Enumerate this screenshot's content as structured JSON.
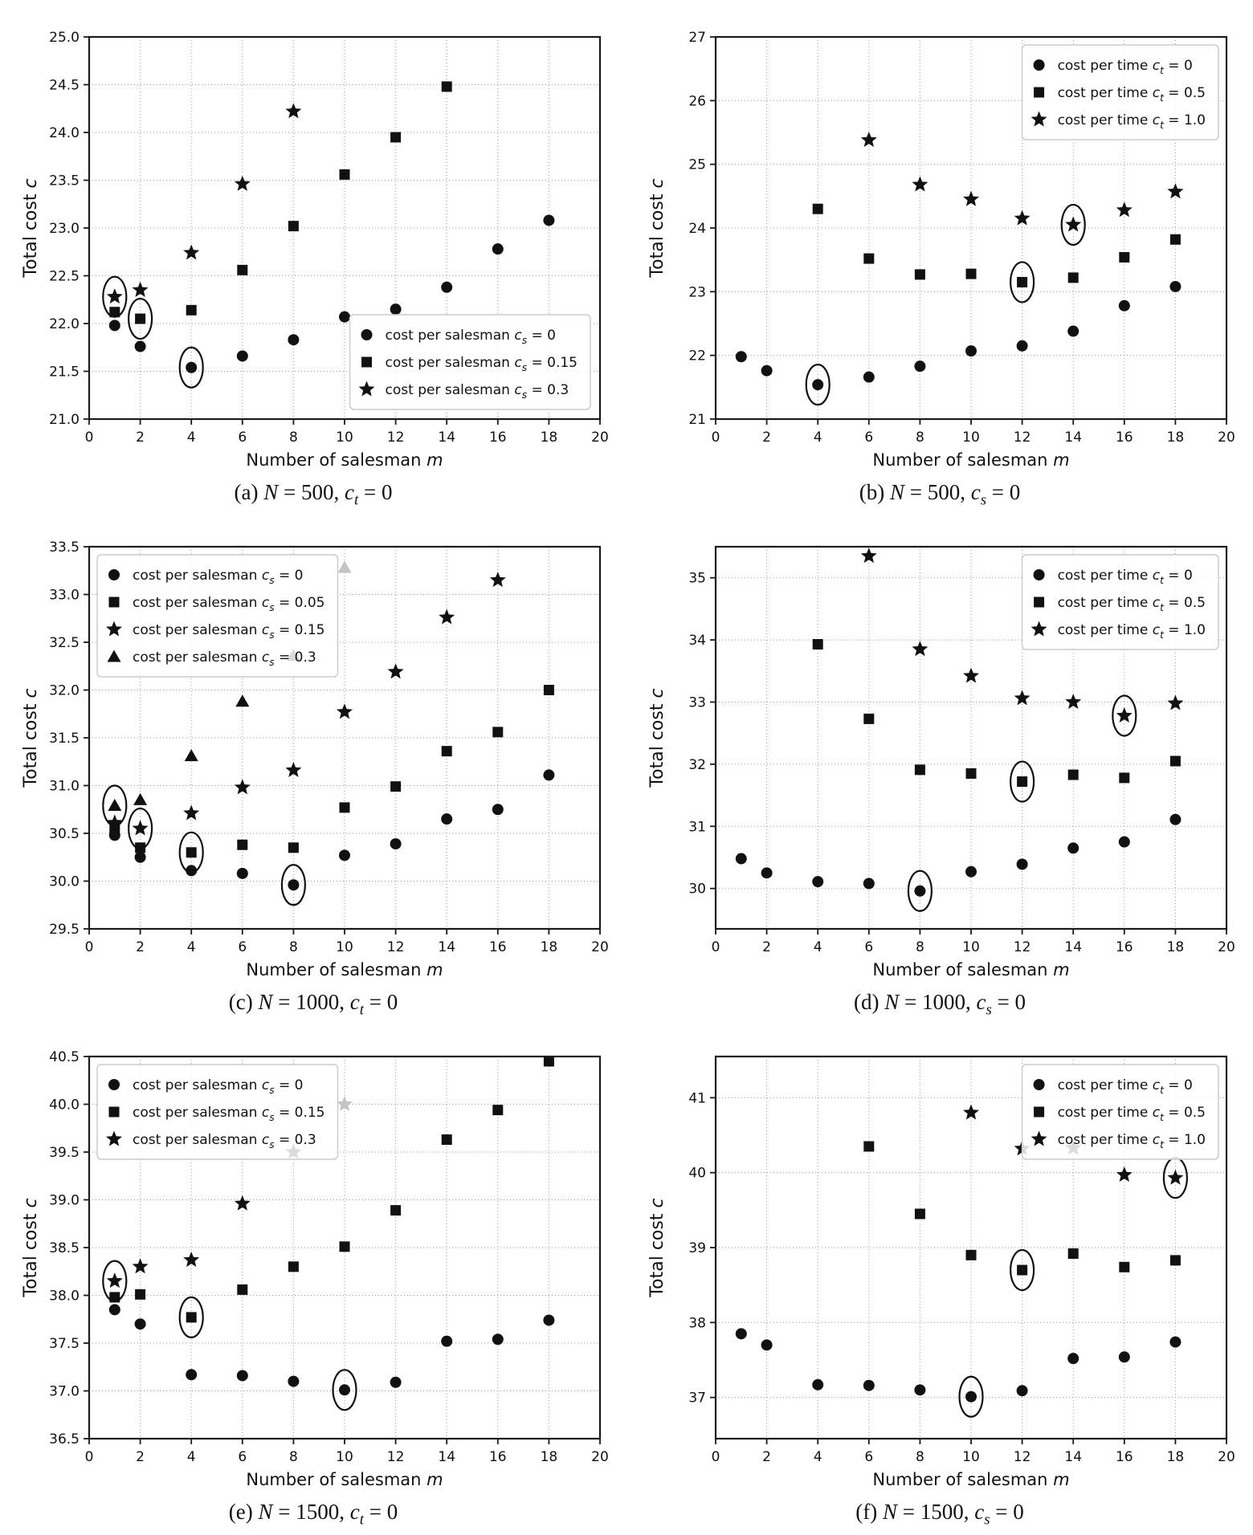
{
  "style": {
    "marker_color": "#111111",
    "faded_marker_color": "#c4c4c4",
    "grid_color": "#9b9b9b",
    "axis_color": "#1a1a1a",
    "legend_border": "#cccccc",
    "background": "#ffffff"
  },
  "chart_data": [
    {
      "id": "a",
      "type": "scatter",
      "caption": "(a) N = 500, c_t = 0",
      "xlabel": "Number of salesman m",
      "ylabel": "Total cost c",
      "xlim": [
        0,
        20
      ],
      "ylim": [
        21.0,
        25.0
      ],
      "xticks": [
        0,
        2,
        4,
        6,
        8,
        10,
        12,
        14,
        16,
        18,
        20
      ],
      "xtick_labels": [
        "0",
        "2",
        "4",
        "6",
        "8",
        "10",
        "12",
        "14",
        "16",
        "18",
        "20"
      ],
      "yticks": [
        21.0,
        21.5,
        22.0,
        22.5,
        23.0,
        23.5,
        24.0,
        24.5,
        25.0
      ],
      "ytick_labels": [
        "21.0",
        "21.5",
        "22.0",
        "22.5",
        "23.0",
        "23.5",
        "24.0",
        "24.5",
        "25.0"
      ],
      "legend": {
        "position": "lower-right",
        "items": [
          {
            "marker": "circle",
            "label": "cost per salesman c_s = 0"
          },
          {
            "marker": "square",
            "label": "cost per salesman c_s = 0.15"
          },
          {
            "marker": "star",
            "label": "cost per salesman c_s = 0.3"
          }
        ]
      },
      "series": [
        {
          "name": "cost per salesman c_s = 0",
          "marker": "circle",
          "x": [
            1,
            2,
            4,
            6,
            8,
            10,
            12,
            14,
            16,
            18
          ],
          "y": [
            21.98,
            21.76,
            21.54,
            21.66,
            21.83,
            22.07,
            22.15,
            22.38,
            22.78,
            23.08
          ]
        },
        {
          "name": "cost per salesman c_s = 0.15",
          "marker": "square",
          "x": [
            1,
            2,
            4,
            6,
            8,
            10,
            12,
            14
          ],
          "y": [
            22.12,
            22.05,
            22.14,
            22.56,
            23.02,
            23.56,
            23.95,
            24.48
          ]
        },
        {
          "name": "cost per salesman c_s = 0.3",
          "marker": "star",
          "x": [
            1,
            2,
            4,
            6,
            8
          ],
          "y": [
            22.28,
            22.35,
            22.74,
            23.46,
            24.22
          ]
        }
      ],
      "circled": [
        {
          "x": 4,
          "y": 21.54
        },
        {
          "x": 2,
          "y": 22.05
        },
        {
          "x": 1,
          "y": 22.28
        }
      ]
    },
    {
      "id": "b",
      "type": "scatter",
      "caption": "(b) N = 500, c_s = 0",
      "xlabel": "Number of salesman m",
      "ylabel": "Total cost c",
      "xlim": [
        0,
        20
      ],
      "ylim": [
        21,
        27
      ],
      "xticks": [
        0,
        2,
        4,
        6,
        8,
        10,
        12,
        14,
        16,
        18,
        20
      ],
      "xtick_labels": [
        "0",
        "2",
        "4",
        "6",
        "8",
        "10",
        "12",
        "14",
        "16",
        "18",
        "20"
      ],
      "yticks": [
        21,
        22,
        23,
        24,
        25,
        26,
        27
      ],
      "ytick_labels": [
        "21",
        "22",
        "23",
        "24",
        "25",
        "26",
        "27"
      ],
      "legend": {
        "position": "upper-right",
        "items": [
          {
            "marker": "circle",
            "label": "cost per time c_t = 0"
          },
          {
            "marker": "square",
            "label": "cost per time c_t = 0.5"
          },
          {
            "marker": "star",
            "label": "cost per time c_t = 1.0"
          }
        ]
      },
      "series": [
        {
          "name": "cost per time c_t = 0",
          "marker": "circle",
          "x": [
            1,
            2,
            4,
            6,
            8,
            10,
            12,
            14,
            16,
            18
          ],
          "y": [
            21.98,
            21.76,
            21.54,
            21.66,
            21.83,
            22.07,
            22.15,
            22.38,
            22.78,
            23.08
          ]
        },
        {
          "name": "cost per time c_t = 0.5",
          "marker": "square",
          "x": [
            4,
            6,
            8,
            10,
            12,
            14,
            16,
            18
          ],
          "y": [
            24.3,
            23.52,
            23.27,
            23.28,
            23.15,
            23.22,
            23.54,
            23.82
          ]
        },
        {
          "name": "cost per time c_t = 1.0",
          "marker": "star",
          "x": [
            6,
            8,
            10,
            12,
            14,
            16,
            18
          ],
          "y": [
            25.38,
            24.68,
            24.45,
            24.15,
            24.05,
            24.28,
            24.57
          ]
        }
      ],
      "circled": [
        {
          "x": 4,
          "y": 21.54
        },
        {
          "x": 12,
          "y": 23.15
        },
        {
          "x": 14,
          "y": 24.05
        }
      ]
    },
    {
      "id": "c",
      "type": "scatter",
      "caption": "(c) N = 1000, c_t = 0",
      "xlabel": "Number of salesman m",
      "ylabel": "Total cost c",
      "xlim": [
        0,
        20
      ],
      "ylim": [
        29.5,
        33.5
      ],
      "xticks": [
        0,
        2,
        4,
        6,
        8,
        10,
        12,
        14,
        16,
        18,
        20
      ],
      "xtick_labels": [
        "0",
        "2",
        "4",
        "6",
        "8",
        "10",
        "12",
        "14",
        "16",
        "18",
        "20"
      ],
      "yticks": [
        29.5,
        30.0,
        30.5,
        31.0,
        31.5,
        32.0,
        32.5,
        33.0,
        33.5
      ],
      "ytick_labels": [
        "29.5",
        "30.0",
        "30.5",
        "31.0",
        "31.5",
        "32.0",
        "32.5",
        "33.0",
        "33.5"
      ],
      "legend": {
        "position": "upper-left",
        "items": [
          {
            "marker": "circle",
            "label": "cost per salesman c_s = 0"
          },
          {
            "marker": "square",
            "label": "cost per salesman c_s = 0.05"
          },
          {
            "marker": "star",
            "label": "cost per salesman c_s = 0.15"
          },
          {
            "marker": "triangle",
            "label": "cost per salesman c_s = 0.3"
          }
        ]
      },
      "series": [
        {
          "name": "cost per salesman c_s = 0",
          "marker": "circle",
          "x": [
            1,
            2,
            4,
            6,
            8,
            10,
            12,
            14,
            16,
            18
          ],
          "y": [
            30.48,
            30.25,
            30.11,
            30.08,
            29.96,
            30.27,
            30.39,
            30.65,
            30.75,
            31.11
          ]
        },
        {
          "name": "cost per salesman c_s = 0.05",
          "marker": "square",
          "x": [
            1,
            2,
            4,
            6,
            8,
            10,
            12,
            14,
            16,
            18
          ],
          "y": [
            30.54,
            30.35,
            30.3,
            30.38,
            30.35,
            30.77,
            30.99,
            31.36,
            31.56,
            32.0
          ]
        },
        {
          "name": "cost per salesman c_s = 0.15",
          "marker": "star",
          "x": [
            1,
            2,
            4,
            6,
            8,
            10,
            12,
            14,
            16
          ],
          "y": [
            30.61,
            30.55,
            30.71,
            30.98,
            31.16,
            31.77,
            32.19,
            32.76,
            33.15
          ]
        },
        {
          "name": "cost per salesman c_s = 0.3",
          "marker": "triangle",
          "x": [
            1,
            2,
            4,
            6,
            8,
            10
          ],
          "y": [
            30.79,
            30.85,
            31.31,
            31.88,
            32.36,
            33.28
          ],
          "faded_x": [
            10
          ]
        }
      ],
      "circled": [
        {
          "x": 8,
          "y": 29.96
        },
        {
          "x": 4,
          "y": 30.3
        },
        {
          "x": 2,
          "y": 30.55
        },
        {
          "x": 1,
          "y": 30.79
        }
      ]
    },
    {
      "id": "d",
      "type": "scatter",
      "caption": "(d) N = 1000, c_s = 0",
      "xlabel": "Number of salesman m",
      "ylabel": "Total cost c",
      "xlim": [
        0,
        20
      ],
      "ylim": [
        29.35,
        35.5
      ],
      "xticks": [
        0,
        2,
        4,
        6,
        8,
        10,
        12,
        14,
        16,
        18,
        20
      ],
      "xtick_labels": [
        "0",
        "2",
        "4",
        "6",
        "8",
        "10",
        "12",
        "14",
        "16",
        "18",
        "20"
      ],
      "yticks": [
        30,
        31,
        32,
        33,
        34,
        35
      ],
      "ytick_labels": [
        "30",
        "31",
        "32",
        "33",
        "34",
        "35"
      ],
      "legend": {
        "position": "upper-right",
        "items": [
          {
            "marker": "circle",
            "label": "cost per time c_t = 0"
          },
          {
            "marker": "square",
            "label": "cost per time c_t = 0.5"
          },
          {
            "marker": "star",
            "label": "cost per time c_t = 1.0"
          }
        ]
      },
      "series": [
        {
          "name": "cost per time c_t = 0",
          "marker": "circle",
          "x": [
            1,
            2,
            4,
            6,
            8,
            10,
            12,
            14,
            16,
            18
          ],
          "y": [
            30.48,
            30.25,
            30.11,
            30.08,
            29.96,
            30.27,
            30.39,
            30.65,
            30.75,
            31.11
          ]
        },
        {
          "name": "cost per time c_t = 0.5",
          "marker": "square",
          "x": [
            4,
            6,
            8,
            10,
            12,
            14,
            16,
            18
          ],
          "y": [
            33.93,
            32.73,
            31.91,
            31.85,
            31.72,
            31.83,
            31.78,
            32.05
          ]
        },
        {
          "name": "cost per time c_t = 1.0",
          "marker": "star",
          "x": [
            6,
            8,
            10,
            12,
            14,
            16,
            18
          ],
          "y": [
            35.35,
            33.85,
            33.42,
            33.06,
            33.0,
            32.78,
            32.98
          ]
        }
      ],
      "circled": [
        {
          "x": 8,
          "y": 29.96
        },
        {
          "x": 12,
          "y": 31.72
        },
        {
          "x": 16,
          "y": 32.78
        }
      ]
    },
    {
      "id": "e",
      "type": "scatter",
      "caption": "(e) N = 1500, c_t = 0",
      "xlabel": "Number of salesman m",
      "ylabel": "Total cost c",
      "xlim": [
        0,
        20
      ],
      "ylim": [
        36.5,
        40.5
      ],
      "xticks": [
        0,
        2,
        4,
        6,
        8,
        10,
        12,
        14,
        16,
        18,
        20
      ],
      "xtick_labels": [
        "0",
        "2",
        "4",
        "6",
        "8",
        "10",
        "12",
        "14",
        "16",
        "18",
        "20"
      ],
      "yticks": [
        36.5,
        37.0,
        37.5,
        38.0,
        38.5,
        39.0,
        39.5,
        40.0,
        40.5
      ],
      "ytick_labels": [
        "36.5",
        "37.0",
        "37.5",
        "38.0",
        "38.5",
        "39.0",
        "39.5",
        "40.0",
        "40.5"
      ],
      "legend": {
        "position": "upper-left",
        "items": [
          {
            "marker": "circle",
            "label": "cost per salesman c_s = 0"
          },
          {
            "marker": "square",
            "label": "cost per salesman c_s = 0.15"
          },
          {
            "marker": "star",
            "label": "cost per salesman c_s = 0.3"
          }
        ]
      },
      "series": [
        {
          "name": "cost per salesman c_s = 0",
          "marker": "circle",
          "x": [
            1,
            2,
            4,
            6,
            8,
            10,
            12,
            14,
            16,
            18
          ],
          "y": [
            37.85,
            37.7,
            37.17,
            37.16,
            37.1,
            37.01,
            37.09,
            37.52,
            37.54,
            37.74
          ]
        },
        {
          "name": "cost per salesman c_s = 0.15",
          "marker": "square",
          "x": [
            1,
            2,
            4,
            6,
            8,
            10,
            12,
            14,
            16,
            18
          ],
          "y": [
            37.98,
            38.01,
            37.77,
            38.06,
            38.3,
            38.51,
            38.89,
            39.63,
            39.94,
            40.45
          ]
        },
        {
          "name": "cost per salesman c_s = 0.3",
          "marker": "star",
          "x": [
            1,
            2,
            4,
            6,
            8,
            10
          ],
          "y": [
            38.15,
            38.3,
            38.37,
            38.96,
            39.5,
            40.0
          ],
          "faded_x": [
            10
          ]
        }
      ],
      "circled": [
        {
          "x": 10,
          "y": 37.01
        },
        {
          "x": 4,
          "y": 37.77
        },
        {
          "x": 1,
          "y": 38.15
        }
      ]
    },
    {
      "id": "f",
      "type": "scatter",
      "caption": "(f) N = 1500, c_s = 0",
      "xlabel": "Number of salesman m",
      "ylabel": "Total cost c",
      "xlim": [
        0,
        20
      ],
      "ylim": [
        36.45,
        41.55
      ],
      "xticks": [
        0,
        2,
        4,
        6,
        8,
        10,
        12,
        14,
        16,
        18,
        20
      ],
      "xtick_labels": [
        "0",
        "2",
        "4",
        "6",
        "8",
        "10",
        "12",
        "14",
        "16",
        "18",
        "20"
      ],
      "yticks": [
        37,
        38,
        39,
        40,
        41
      ],
      "ytick_labels": [
        "37",
        "38",
        "39",
        "40",
        "41"
      ],
      "legend": {
        "position": "upper-right",
        "items": [
          {
            "marker": "circle",
            "label": "cost per time c_t = 0"
          },
          {
            "marker": "square",
            "label": "cost per time c_t = 0.5"
          },
          {
            "marker": "star",
            "label": "cost per time c_t = 1.0"
          }
        ]
      },
      "series": [
        {
          "name": "cost per time c_t = 0",
          "marker": "circle",
          "x": [
            1,
            2,
            4,
            6,
            8,
            10,
            12,
            14,
            16,
            18
          ],
          "y": [
            37.85,
            37.7,
            37.17,
            37.16,
            37.1,
            37.01,
            37.09,
            37.52,
            37.54,
            37.74
          ]
        },
        {
          "name": "cost per time c_t = 0.5",
          "marker": "square",
          "x": [
            6,
            8,
            10,
            12,
            14,
            16,
            18
          ],
          "y": [
            40.35,
            39.45,
            38.9,
            38.7,
            38.92,
            38.74,
            38.83
          ]
        },
        {
          "name": "cost per time c_t = 1.0",
          "marker": "star",
          "x": [
            10,
            12,
            14,
            16,
            18
          ],
          "y": [
            40.8,
            40.32,
            40.33,
            39.97,
            39.93
          ]
        }
      ],
      "circled": [
        {
          "x": 10,
          "y": 37.01
        },
        {
          "x": 12,
          "y": 38.7
        },
        {
          "x": 18,
          "y": 39.93
        }
      ]
    }
  ]
}
